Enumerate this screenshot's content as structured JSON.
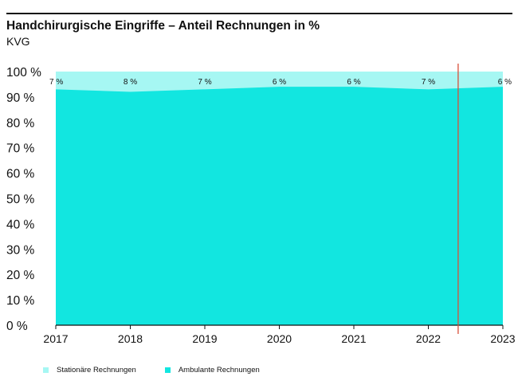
{
  "header": {
    "title": "Handchirurgische Eingriffe – Anteil Rechnungen in %",
    "subtitle": "KVG"
  },
  "colors": {
    "stationaer": "#a6f7f3",
    "ambulant": "#12e6e0",
    "marker": "#d94f38",
    "axis": "#111111"
  },
  "chart_data": {
    "type": "area",
    "stacked": true,
    "x": [
      "2017",
      "2018",
      "2019",
      "2020",
      "2021",
      "2022",
      "2023"
    ],
    "y_ticks": [
      "0 %",
      "10 %",
      "20 %",
      "30 %",
      "40 %",
      "50 %",
      "60 %",
      "70 %",
      "80 %",
      "90 %",
      "100 %"
    ],
    "ylim": [
      0,
      100
    ],
    "series": [
      {
        "name": "Ambulante Rechnungen",
        "values": [
          93,
          92,
          93,
          94,
          94,
          93,
          94
        ]
      },
      {
        "name": "Stationäre Rechnungen",
        "values": [
          7,
          8,
          7,
          6,
          6,
          7,
          6
        ]
      }
    ],
    "data_labels": [
      "7 %",
      "8 %",
      "7 %",
      "6 %",
      "6 %",
      "7 %",
      "6 %"
    ],
    "vertical_marker_x": 2022.4,
    "grid": false
  },
  "legend": [
    {
      "label": "Stationäre Rechnungen",
      "color": "#a6f7f3"
    },
    {
      "label": "Ambulante Rechnungen",
      "color": "#12e6e0"
    }
  ]
}
